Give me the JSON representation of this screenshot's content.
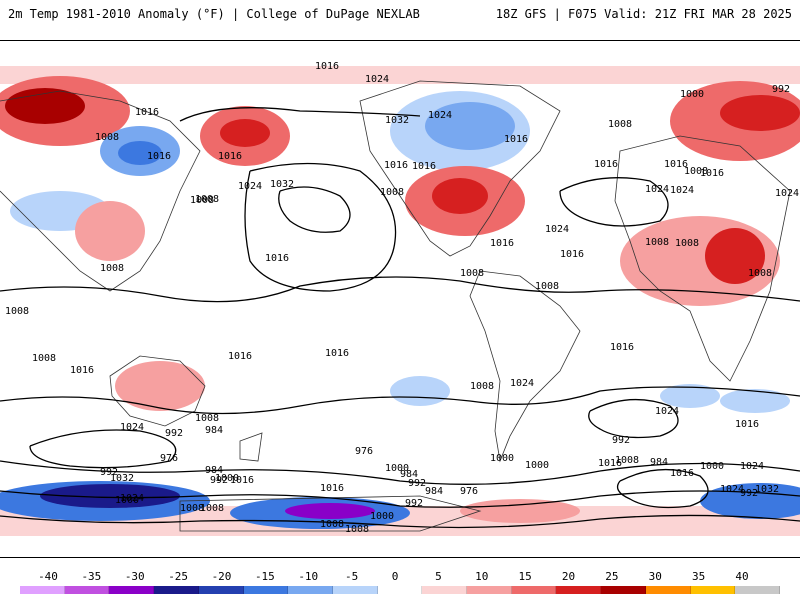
{
  "header": {
    "left": "2m Temp 1981-2010 Anomaly (°F) | College of DuPage NEXLAB",
    "right": "18Z GFS | F075 Valid: 21Z FRI MAR 28 2025"
  },
  "isobar_labels": [
    "1016",
    "1024",
    "1000",
    "992",
    "1016",
    "1008",
    "1032",
    "1024",
    "1016",
    "1008",
    "1016",
    "1032",
    "1024",
    "1016",
    "1008",
    "1016",
    "1016",
    "1008",
    "1016",
    "1024",
    "1008",
    "1024",
    "1016",
    "1024",
    "1008",
    "1016",
    "1008",
    "1016",
    "1024",
    "1008",
    "1008",
    "1008",
    "1008",
    "1008",
    "1016",
    "1016",
    "1016",
    "1016",
    "1008",
    "1008",
    "1016",
    "1024",
    "1024",
    "1016",
    "1008",
    "1024",
    "1008",
    "1000",
    "992",
    "984",
    "976",
    "984",
    "992",
    "1016",
    "976",
    "992",
    "984",
    "1000",
    "992",
    "984",
    "992",
    "1008",
    "1000",
    "1016",
    "1016",
    "1024",
    "1008",
    "1000",
    "992",
    "984",
    "976",
    "992",
    "1000",
    "1024",
    "1032",
    "1016",
    "1000",
    "1008",
    "1008",
    "1000",
    "1008",
    "1016",
    "1024",
    "1032"
  ],
  "legend": {
    "ticks": [
      "-40",
      "-35",
      "-30",
      "-25",
      "-20",
      "-15",
      "-10",
      "-5",
      "0",
      "5",
      "10",
      "15",
      "20",
      "25",
      "30",
      "35",
      "40"
    ],
    "colors": [
      "#e0a0ff",
      "#c050e0",
      "#8a00c8",
      "#1a1a8a",
      "#2440b0",
      "#3c78e0",
      "#78a8f0",
      "#b8d4fa",
      "#ffffff",
      "#fbd4d4",
      "#f6a0a0",
      "#ee6a6a",
      "#d62020",
      "#a80000",
      "#ff8c00",
      "#ffc000",
      "#c8c8c8"
    ]
  }
}
